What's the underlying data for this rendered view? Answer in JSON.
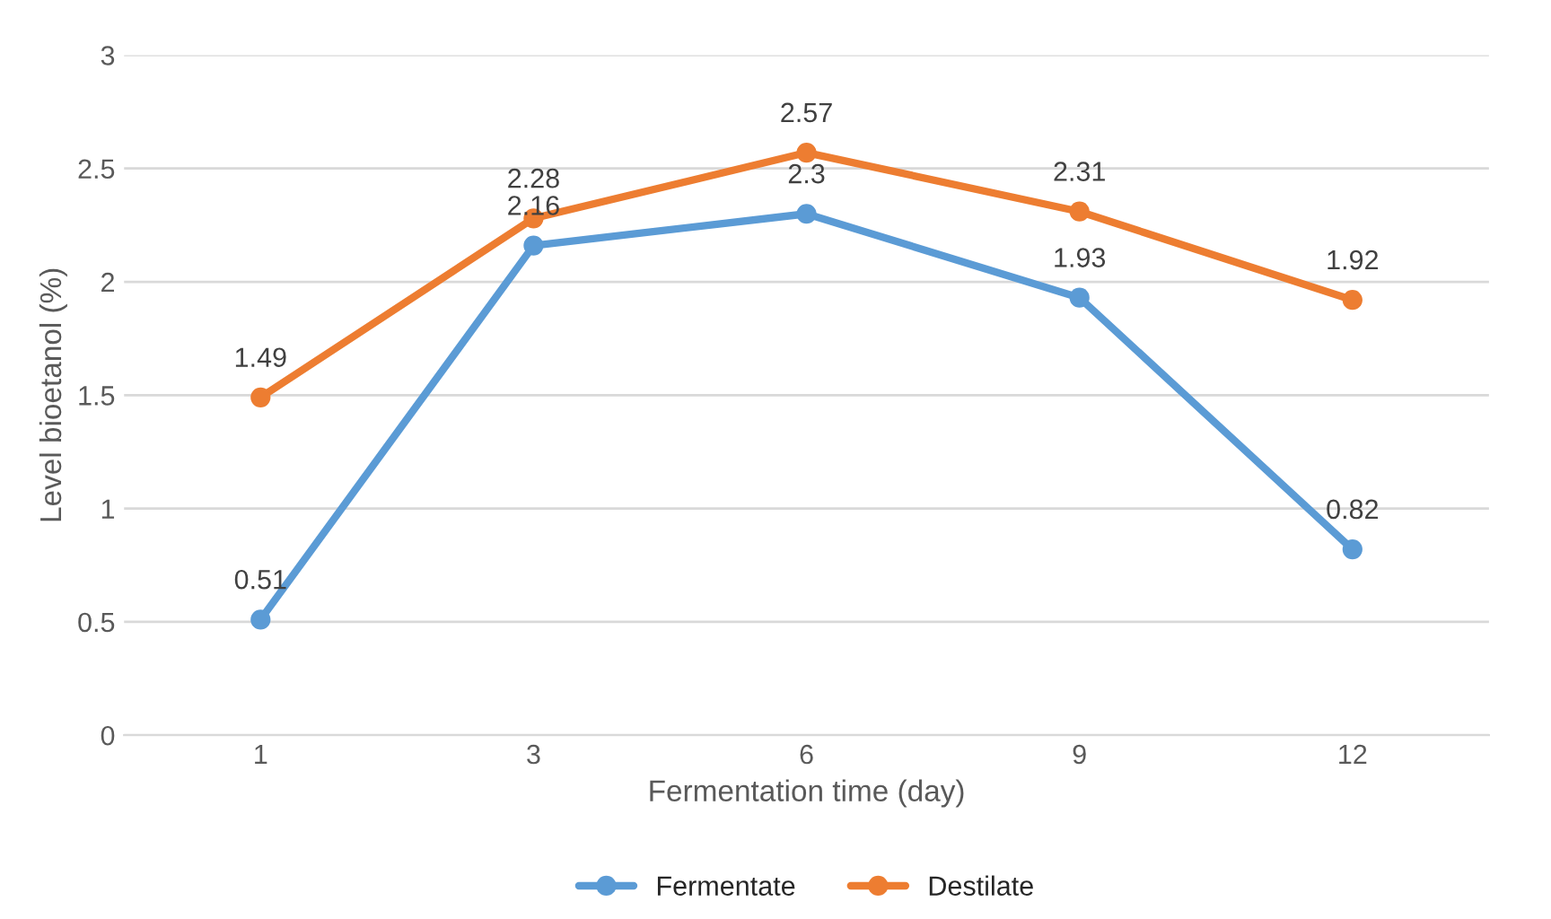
{
  "chart_data": {
    "type": "line",
    "xlabel": "Fermentation time (day)",
    "ylabel": "Level bioetanol (%)",
    "categories": [
      "1",
      "3",
      "6",
      "9",
      "12"
    ],
    "series": [
      {
        "name": "Fermentate",
        "color": "#5b9bd5",
        "values": [
          0.51,
          2.16,
          2.3,
          1.93,
          0.82
        ]
      },
      {
        "name": "Destilate",
        "color": "#ed7d31",
        "values": [
          1.49,
          2.28,
          2.57,
          2.31,
          1.92
        ]
      }
    ],
    "ylim": [
      0,
      3
    ],
    "yticks": [
      0,
      0.5,
      1,
      1.5,
      2,
      2.5,
      3
    ],
    "grid": "y",
    "legend": "bottom",
    "marker": "circle",
    "line_style": "solid",
    "data_labels": true
  }
}
